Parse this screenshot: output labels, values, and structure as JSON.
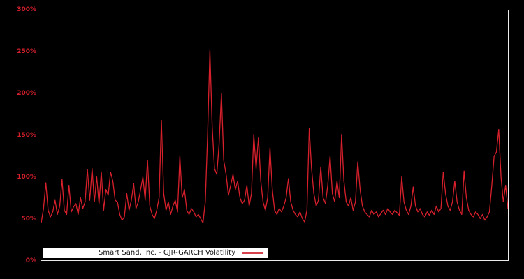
{
  "colors": {
    "background": "#000000",
    "plot_border": "#ebebeb",
    "line": "#d7202c",
    "tick_label": "#d7202c",
    "legend_background": "#ffffff",
    "legend_text": "#111111"
  },
  "legend": {
    "label": "Smart Sand, Inc. - GJR-GARCH Volatility",
    "marker": "red-line-sample",
    "position": "bottom-left-inside-plot"
  },
  "chart_data": {
    "type": "line",
    "title": "",
    "xlabel": "",
    "ylabel": "",
    "ylim": [
      0,
      300
    ],
    "y_unit": "%",
    "y_ticks": [
      "300%",
      "250%",
      "200%",
      "150%",
      "100%",
      "50%",
      "0%"
    ],
    "x_ticks": [],
    "grid": "off",
    "legend_position": "bottom-left",
    "series": [
      {
        "name": "Smart Sand, Inc. - GJR-GARCH Volatility",
        "color": "#d7202c",
        "values": [
          45,
          62,
          93,
          60,
          52,
          58,
          72,
          55,
          65,
          97,
          60,
          55,
          90,
          58,
          64,
          68,
          55,
          75,
          62,
          70,
          109,
          72,
          110,
          70,
          100,
          68,
          106,
          60,
          85,
          78,
          106,
          95,
          72,
          70,
          55,
          48,
          52,
          80,
          60,
          72,
          92,
          62,
          70,
          85,
          100,
          72,
          120,
          65,
          55,
          50,
          60,
          75,
          168,
          80,
          60,
          70,
          55,
          65,
          72,
          58,
          125,
          75,
          85,
          60,
          55,
          62,
          58,
          52,
          55,
          50,
          45,
          70,
          150,
          252,
          160,
          110,
          103,
          140,
          200,
          120,
          103,
          78,
          90,
          103,
          85,
          95,
          75,
          68,
          72,
          90,
          65,
          80,
          151,
          110,
          147,
          95,
          70,
          60,
          75,
          135,
          85,
          60,
          55,
          62,
          58,
          65,
          75,
          98,
          70,
          60,
          55,
          52,
          58,
          50,
          46,
          60,
          158,
          110,
          80,
          65,
          72,
          112,
          75,
          68,
          90,
          125,
          80,
          70,
          95,
          75,
          151,
          95,
          70,
          65,
          75,
          60,
          70,
          118,
          85,
          65,
          58,
          55,
          52,
          60,
          55,
          58,
          52,
          56,
          60,
          55,
          62,
          58,
          55,
          60,
          57,
          54,
          100,
          70,
          60,
          55,
          65,
          88,
          65,
          58,
          62,
          55,
          52,
          58,
          54,
          60,
          55,
          65,
          58,
          62,
          106,
          80,
          65,
          60,
          70,
          95,
          70,
          60,
          55,
          107,
          75,
          60,
          55,
          52,
          58,
          55,
          50,
          55,
          48,
          52,
          58,
          90,
          125,
          130,
          157,
          100,
          70,
          90,
          62
        ]
      }
    ]
  }
}
